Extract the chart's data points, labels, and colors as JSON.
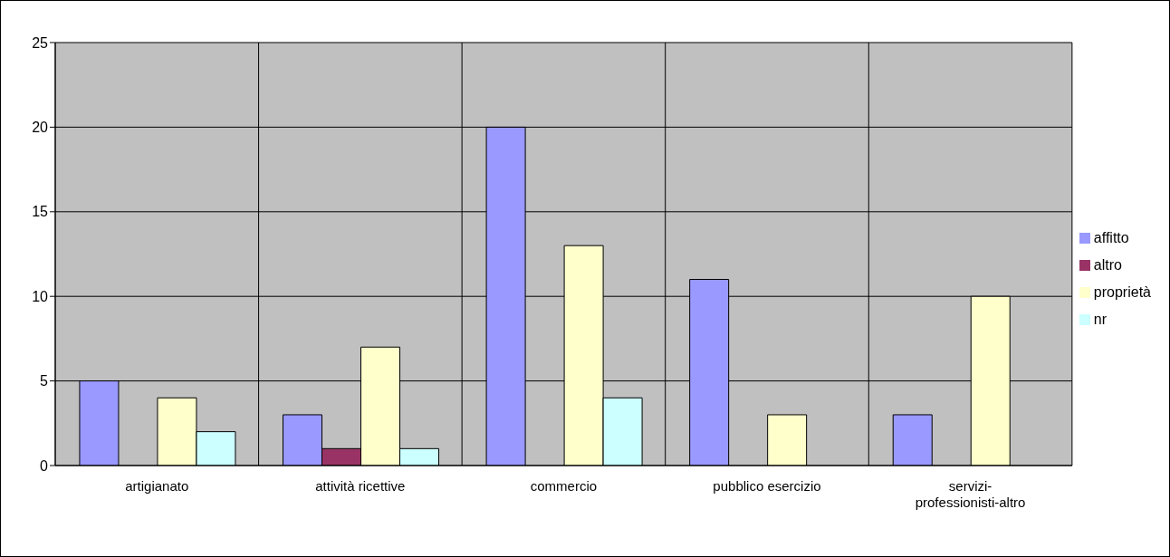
{
  "chart_data": {
    "type": "bar",
    "categories": [
      "artigianato",
      "attività ricettive",
      "commercio",
      "pubblico esercizio",
      "servizi-professionisti-altro"
    ],
    "series": [
      {
        "name": "affitto",
        "color": "#9999ff",
        "values": [
          5,
          3,
          20,
          11,
          3
        ]
      },
      {
        "name": "altro",
        "color": "#993366",
        "values": [
          null,
          1,
          null,
          null,
          null
        ]
      },
      {
        "name": "proprietà",
        "color": "#ffffcc",
        "values": [
          4,
          7,
          13,
          3,
          10
        ]
      },
      {
        "name": "nr",
        "color": "#ccffff",
        "values": [
          2,
          1,
          4,
          null,
          null
        ]
      }
    ],
    "ylim": [
      0,
      25
    ],
    "yticks": [
      0,
      5,
      10,
      15,
      20,
      25
    ],
    "grid": true,
    "legend": "right"
  }
}
